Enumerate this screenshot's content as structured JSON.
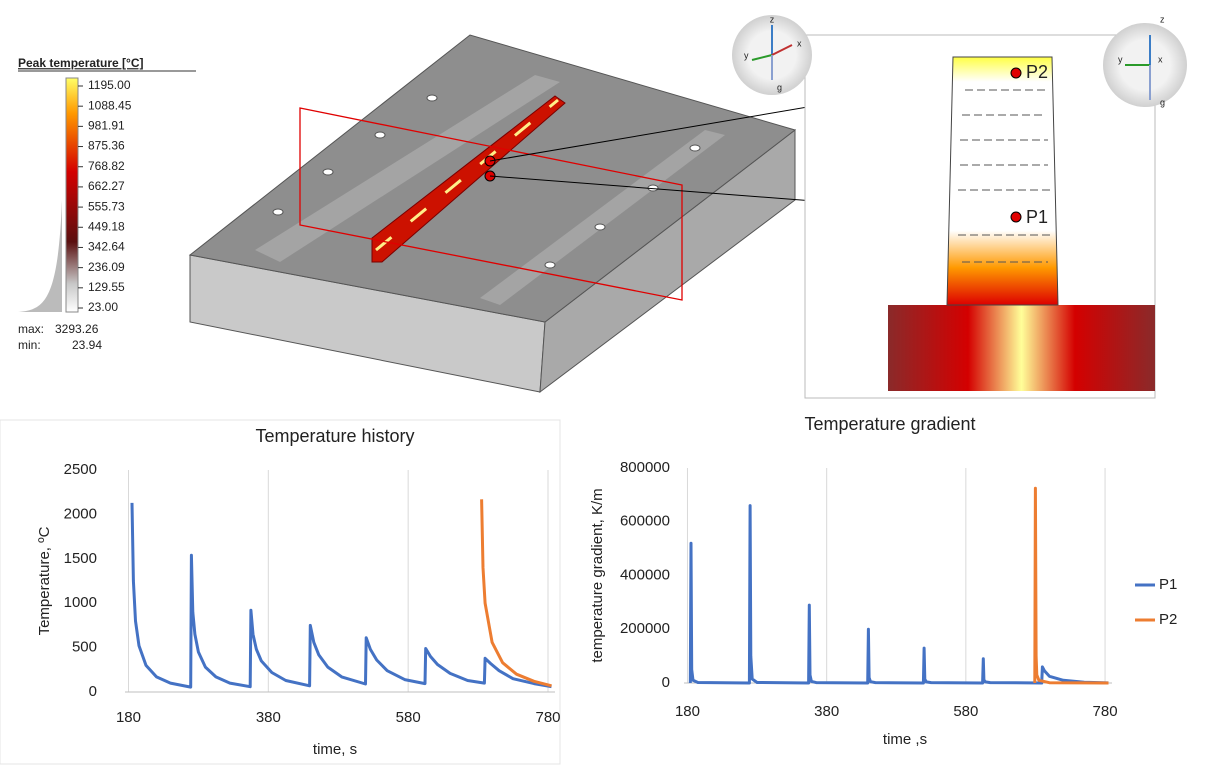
{
  "colorbar": {
    "title": "Peak temperature [°C]",
    "ticks": [
      {
        "value": 1195,
        "label": "1195.00"
      },
      1088.45,
      981.91,
      875.36,
      768.82,
      662.27,
      555.73,
      449.18,
      342.64,
      236.09,
      129.55,
      {
        "value": 23,
        "label": "23.00"
      }
    ],
    "max": {
      "label": "max:",
      "value": 3293.26
    },
    "min": {
      "label": "min:",
      "value": 23.94
    }
  },
  "model_points": [
    "P2",
    "P1"
  ],
  "gizmos": [
    [
      "z",
      "y",
      "x",
      "g"
    ],
    [
      "z",
      "y",
      "x",
      "g"
    ]
  ],
  "chart_data": [
    {
      "type": "line",
      "title": "Temperature history",
      "x_label": "time, s",
      "y_label": "Temperature, ºC",
      "xlim": [
        175,
        790
      ],
      "xticks": [
        180,
        380,
        580,
        780
      ],
      "ylim": [
        0,
        2500
      ],
      "yticks": [
        0,
        500,
        1000,
        1500,
        2000,
        2500
      ],
      "grid": "x",
      "series": [
        {
          "color": "#4472c4",
          "x": [
            185,
            187,
            190,
            195,
            205,
            220,
            240,
            269,
            270,
            272,
            275,
            280,
            290,
            305,
            325,
            354,
            355,
            358,
            363,
            370,
            385,
            405,
            439,
            440,
            445,
            452,
            465,
            485,
            519,
            520,
            526,
            535,
            550,
            575,
            604,
            605,
            612,
            622,
            640,
            665,
            689,
            690,
            698,
            710,
            730,
            760,
            785
          ],
          "values": [
            2130,
            1250,
            800,
            520,
            300,
            170,
            100,
            55,
            1540,
            900,
            650,
            450,
            280,
            170,
            100,
            60,
            920,
            650,
            480,
            350,
            220,
            130,
            70,
            750,
            560,
            420,
            280,
            170,
            90,
            610,
            480,
            360,
            240,
            140,
            95,
            490,
            400,
            310,
            210,
            130,
            100,
            380,
            320,
            240,
            150,
            95,
            60
          ]
        },
        {
          "color": "#ed7d31",
          "x": [
            685,
            687,
            690,
            700,
            715,
            735,
            760,
            785
          ],
          "values": [
            2170,
            1400,
            1000,
            560,
            330,
            200,
            120,
            70
          ]
        }
      ]
    },
    {
      "type": "line",
      "title": "Temperature gradient",
      "x_label": "time ,s",
      "y_label": "temperature gradient, K/m",
      "xlim": [
        175,
        790
      ],
      "xticks": [
        180,
        380,
        580,
        780
      ],
      "ylim": [
        0,
        800000
      ],
      "yticks": [
        0,
        200000,
        400000,
        600000,
        800000
      ],
      "grid": "x",
      "legend": "right",
      "series": [
        {
          "name": "P1",
          "color": "#4472c4",
          "x": [
            184,
            185,
            186,
            188,
            195,
            269,
            270,
            271,
            273,
            280,
            354,
            355,
            356,
            358,
            365,
            439,
            440,
            441,
            443,
            450,
            519,
            520,
            521,
            523,
            530,
            604,
            605,
            606,
            608,
            615,
            689,
            690,
            693,
            700,
            720,
            750,
            785
          ],
          "values": [
            0,
            520000,
            50000,
            10000,
            2000,
            0,
            660000,
            100000,
            15000,
            2000,
            0,
            290000,
            30000,
            6000,
            1500,
            0,
            200000,
            20000,
            5000,
            1500,
            0,
            130000,
            15000,
            4000,
            1500,
            0,
            90000,
            12000,
            4000,
            1500,
            0,
            60000,
            45000,
            25000,
            10000,
            3000,
            500
          ]
        },
        {
          "name": "P2",
          "color": "#ed7d31",
          "x": [
            679,
            680,
            681,
            682,
            685,
            700,
            785
          ],
          "values": [
            0,
            725000,
            100000,
            30000,
            10000,
            1000,
            0
          ]
        }
      ]
    }
  ]
}
